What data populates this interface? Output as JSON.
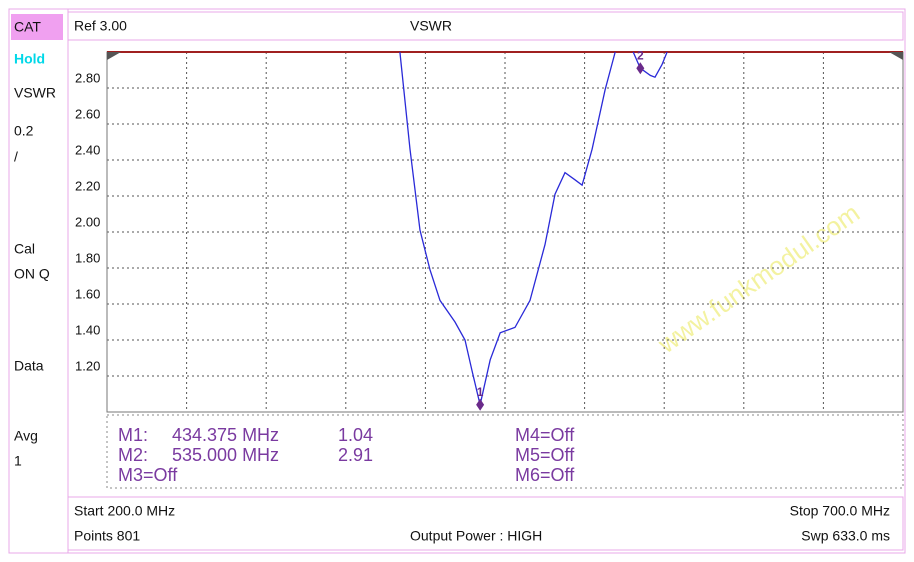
{
  "sidebar": [
    "CAT",
    "Hold",
    "VSWR",
    "0.2",
    "/",
    "Cal",
    "ON Q",
    "Data",
    "Avg",
    "1"
  ],
  "header": {
    "ref": "Ref 3.00",
    "title": "VSWR"
  },
  "chart_data": {
    "type": "line",
    "watermark": "www.funkmodul.com",
    "color": "#2a2ad8",
    "x": [
      384.0,
      390.3,
      396.6,
      402.9,
      409.2,
      418.6,
      424.9,
      429.3,
      434.375,
      440.7,
      447.0,
      456.3,
      465.7,
      475.1,
      481.4,
      487.7,
      494.0,
      498.4,
      504.7,
      512.9,
      519.2,
      525.0,
      530.5,
      535.0,
      541.3,
      544.2,
      548.6,
      551.8
    ],
    "values": [
      3.0,
      2.46,
      2.01,
      1.79,
      1.62,
      1.5,
      1.4,
      1.23,
      1.04,
      1.29,
      1.44,
      1.47,
      1.62,
      1.93,
      2.21,
      2.33,
      2.29,
      2.26,
      2.46,
      2.79,
      3.0,
      null,
      3.0,
      2.91,
      2.87,
      2.86,
      2.93,
      3.0
    ],
    "xlim": [
      200,
      700
    ],
    "xticks": [
      200,
      250,
      300,
      350,
      400,
      450,
      500,
      550,
      600,
      650,
      700
    ],
    "ylim": [
      1,
      3
    ],
    "yticks": [
      {
        "value": 1.2,
        "label": "1.20"
      },
      {
        "value": 1.4,
        "label": "1.40"
      },
      {
        "value": 1.6,
        "label": "1.60"
      },
      {
        "value": 1.8,
        "label": "1.80"
      },
      {
        "value": 2.0,
        "label": "2.00"
      },
      {
        "value": 2.2,
        "label": "2.20"
      },
      {
        "value": 2.4,
        "label": "2.40"
      },
      {
        "value": 2.6,
        "label": "2.60"
      },
      {
        "value": 2.8,
        "label": "2.80"
      }
    ],
    "grid": true,
    "markers": [
      {
        "name": "1",
        "x": 434.375,
        "value": 1.04
      },
      {
        "name": "2",
        "x": 535.0,
        "value": 2.91
      }
    ]
  },
  "marker_table": {
    "left": [
      {
        "label": "M1:",
        "freq": "434.375 MHz",
        "value": "1.04"
      },
      {
        "label": "M2:",
        "freq": "535.000 MHz",
        "value": "2.91"
      },
      {
        "label": "M3=Off"
      }
    ],
    "right": [
      "M4=Off",
      "M5=Off",
      "M6=Off"
    ]
  },
  "footer": {
    "start": "Start 200.0 MHz",
    "stop": "Stop 700.0 MHz",
    "points": "Points 801",
    "power": "Output Power : HIGH",
    "sweep": "Swp 633.0 ms"
  }
}
